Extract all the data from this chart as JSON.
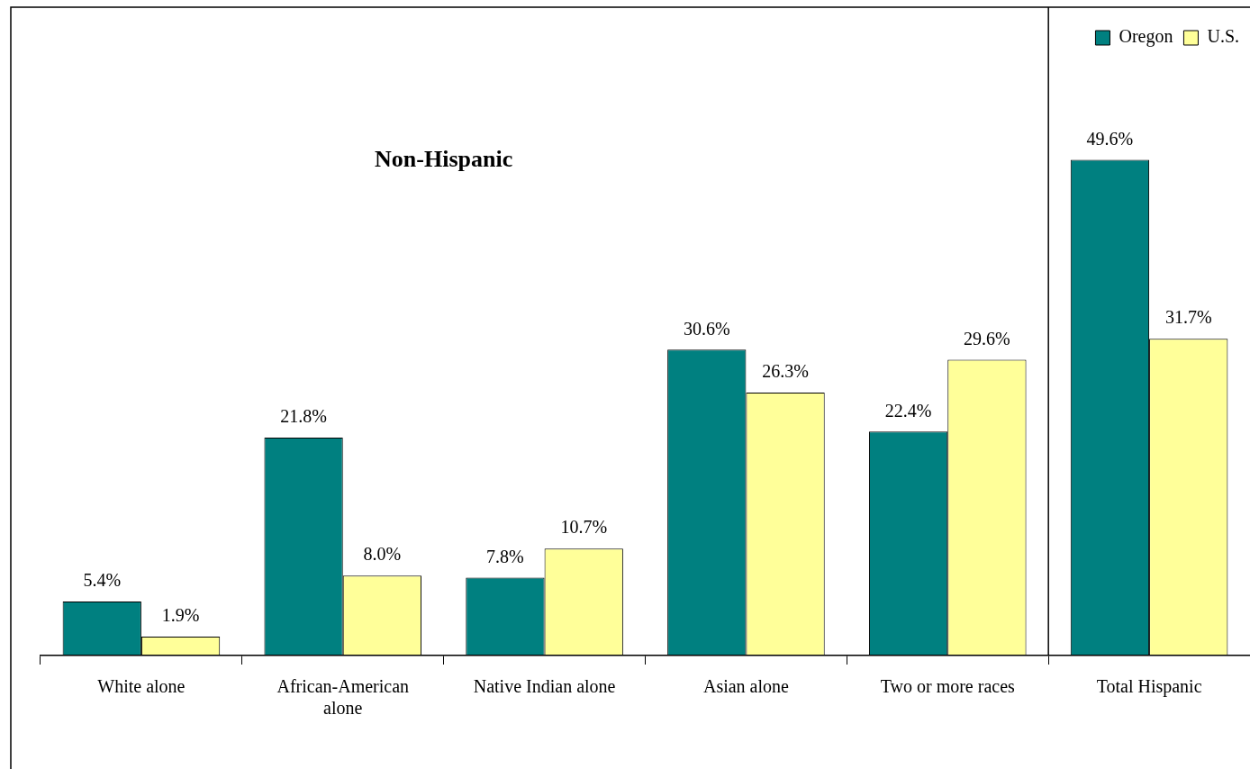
{
  "chart_data": {
    "type": "bar",
    "categories": [
      "White alone",
      "African-American alone",
      "Native Indian alone",
      "Asian alone",
      "Two or more races",
      "Total Hispanic"
    ],
    "series": [
      {
        "name": "Oregon",
        "color": "#008080",
        "values": [
          5.4,
          21.8,
          7.8,
          30.6,
          22.4,
          49.6
        ],
        "value_labels": [
          "5.4%",
          "21.8%",
          "7.8%",
          "30.6%",
          "22.4%",
          "49.6%"
        ]
      },
      {
        "name": "U.S.",
        "color": "#ffff99",
        "values": [
          1.9,
          8.0,
          10.7,
          26.3,
          29.6,
          31.7
        ],
        "value_labels": [
          "1.9%",
          "8.0%",
          "10.7%",
          "26.3%",
          "29.6%",
          "31.7%"
        ]
      }
    ],
    "legend": "top right",
    "grid": false,
    "annotations": [
      "Non-Hispanic"
    ]
  }
}
